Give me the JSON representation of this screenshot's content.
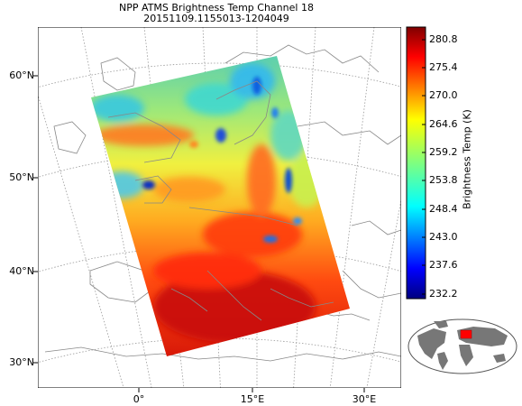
{
  "map": {
    "title": "NPP ATMS Brightness Temp Channel 18",
    "subtitle": "20151109.1155013-1204049",
    "lat_labels": [
      "60°N",
      "50°N",
      "40°N",
      "30°N"
    ],
    "lon_labels": [
      "0°",
      "15°E",
      "30°E"
    ],
    "colorbar": {
      "label": "Brightness Temp (K)",
      "ticks": [
        "280.8",
        "275.4",
        "270.0",
        "264.6",
        "259.2",
        "253.8",
        "248.4",
        "243.0",
        "237.6",
        "232.2"
      ],
      "min": 232.2,
      "max": 283.5,
      "colormap": "jet"
    },
    "inset": "world-locator-map",
    "colors": {
      "land_outline": "#888888",
      "graticule": "#999999",
      "inset_land": "#777777",
      "inset_highlight": "#ff0000"
    }
  }
}
